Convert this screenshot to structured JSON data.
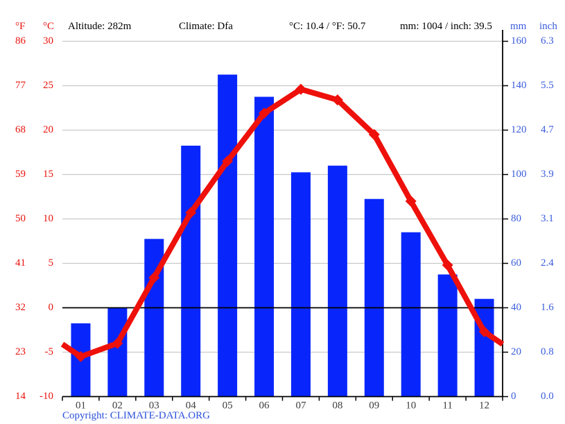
{
  "header": {
    "f_label": "°F",
    "c_label": "°C",
    "altitude": "Altitude: 282m",
    "climate": "Climate: Dfa",
    "temp_avg": "°C: 10.4 / °F: 50.7",
    "precip_total": "mm: 1004 / inch: 39.5",
    "mm_label": "mm",
    "inch_label": "inch"
  },
  "axes": {
    "temp_f_ticks": [
      "86",
      "77",
      "68",
      "59",
      "50",
      "41",
      "32",
      "23",
      "14"
    ],
    "temp_c_ticks": [
      "30",
      "25",
      "20",
      "15",
      "10",
      "5",
      "0",
      "-5",
      "-10"
    ],
    "mm_ticks": [
      "160",
      "140",
      "120",
      "100",
      "80",
      "60",
      "40",
      "20",
      "0"
    ],
    "inch_ticks": [
      "6.3",
      "5.5",
      "4.7",
      "3.9",
      "3.1",
      "2.4",
      "1.6",
      "0.8",
      "0.0"
    ]
  },
  "chart_data": {
    "type": "bar+line",
    "categories": [
      "01",
      "02",
      "03",
      "04",
      "05",
      "06",
      "07",
      "08",
      "09",
      "10",
      "11",
      "12"
    ],
    "series": [
      {
        "name": "precipitation",
        "type": "bar",
        "unit": "mm",
        "values": [
          33,
          40,
          71,
          113,
          145,
          135,
          101,
          104,
          89,
          74,
          55,
          44
        ]
      },
      {
        "name": "temperature",
        "type": "line",
        "unit": "°C",
        "values": [
          -5.5,
          -4.0,
          3.4,
          10.7,
          16.5,
          21.9,
          24.6,
          23.4,
          19.5,
          12.0,
          4.8,
          -2.7
        ],
        "edge_values": [
          -4.1,
          -4.1
        ]
      }
    ],
    "title": "",
    "xlabel": "",
    "y_left": {
      "label": "°C",
      "min": -10,
      "max": 30,
      "step": 5
    },
    "y_left_secondary": {
      "label": "°F",
      "min": 14,
      "max": 86,
      "step": 9
    },
    "y_right": {
      "label": "mm",
      "min": 0,
      "max": 160,
      "step": 20
    },
    "y_right_secondary": {
      "label": "inch",
      "min": 0.0,
      "max": 6.3,
      "step": 0.8
    },
    "grid": true,
    "legend": "none",
    "annotations": {
      "zero_line_c": 0
    }
  },
  "footer": {
    "copyright_prefix": "Copyright: ",
    "link_text": "CLIMATE-DATA.ORG"
  },
  "colors": {
    "bar": "#0826fb",
    "line": "#ee100a",
    "axis_label_blue": "#3a5cdd",
    "axis_label_red": "#e8120b",
    "grid": "#c9c9c9",
    "axis_black": "#000000",
    "x_tick_label": "#3c3c3c"
  }
}
